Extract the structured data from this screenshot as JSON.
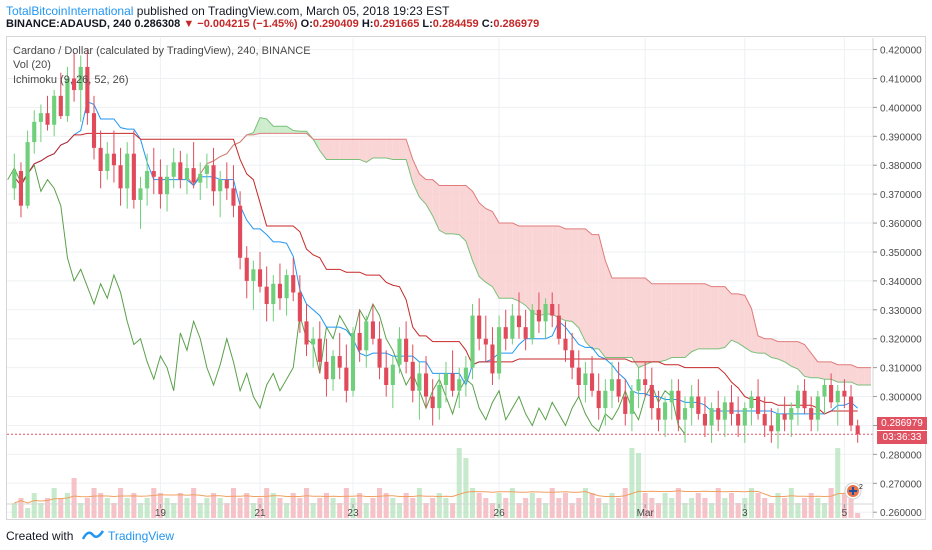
{
  "header": {
    "author": "TotalBitcoinInternational",
    "published": "published on TradingView.com, March 05, 2018 19:23 EST",
    "symbol": "BINANCE:ADAUSD, 240",
    "last": "0.286308",
    "change": "−0.004215 (−1.45%)",
    "o_label": "O:",
    "o_val": "0.290409",
    "h_label": "H:",
    "h_val": "0.291665",
    "l_label": "L:",
    "l_val": "0.284459",
    "c_label": "C:",
    "c_val": "0.286979"
  },
  "legend": {
    "title": "Cardano / Dollar (calculated by TradingView), 240, BINANCE",
    "vol": "Vol (20)",
    "ichimoku": "Ichimoku (9, 26, 52, 26)"
  },
  "price_tag": {
    "price": "0.286979",
    "countdown": "03:36:33"
  },
  "footer": {
    "created": "Created with",
    "brand": "TradingView"
  },
  "colors": {
    "up": "#6fcf7a",
    "down": "#e04a5a",
    "tenkan": "#2196f3",
    "kijun": "#c62828",
    "chikou": "#5aa04a",
    "cloud_up": "#c8ebc8",
    "cloud_down": "#f9d0d0"
  },
  "chart_data": {
    "type": "candlestick",
    "ylim": [
      0.258,
      0.424
    ],
    "y_ticks": [
      "0.420000",
      "0.410000",
      "0.400000",
      "0.390000",
      "0.380000",
      "0.370000",
      "0.360000",
      "0.350000",
      "0.340000",
      "0.330000",
      "0.320000",
      "0.310000",
      "0.300000",
      "0.290000",
      "0.280000",
      "0.270000",
      "0.260000"
    ],
    "x_ticks": [
      {
        "label": "19",
        "bar": 22
      },
      {
        "label": "21",
        "bar": 37
      },
      {
        "label": "23",
        "bar": 51
      },
      {
        "label": "26",
        "bar": 73
      },
      {
        "label": "Mar",
        "bar": 95
      },
      {
        "label": "3",
        "bar": 110
      },
      {
        "label": "5",
        "bar": 125
      }
    ],
    "candles": [
      [
        0.372,
        0.384,
        0.368,
        0.378
      ],
      [
        0.378,
        0.381,
        0.362,
        0.366
      ],
      [
        0.366,
        0.392,
        0.365,
        0.388
      ],
      [
        0.388,
        0.399,
        0.384,
        0.395
      ],
      [
        0.395,
        0.401,
        0.388,
        0.398
      ],
      [
        0.398,
        0.404,
        0.392,
        0.394
      ],
      [
        0.394,
        0.406,
        0.39,
        0.404
      ],
      [
        0.404,
        0.412,
        0.396,
        0.397
      ],
      [
        0.397,
        0.414,
        0.395,
        0.41
      ],
      [
        0.41,
        0.419,
        0.402,
        0.406
      ],
      [
        0.406,
        0.418,
        0.395,
        0.414
      ],
      [
        0.414,
        0.42,
        0.394,
        0.398
      ],
      [
        0.398,
        0.404,
        0.382,
        0.386
      ],
      [
        0.386,
        0.392,
        0.372,
        0.378
      ],
      [
        0.378,
        0.388,
        0.375,
        0.384
      ],
      [
        0.384,
        0.392,
        0.374,
        0.38
      ],
      [
        0.38,
        0.386,
        0.366,
        0.372
      ],
      [
        0.372,
        0.388,
        0.365,
        0.384
      ],
      [
        0.384,
        0.392,
        0.365,
        0.368
      ],
      [
        0.368,
        0.376,
        0.358,
        0.372
      ],
      [
        0.372,
        0.384,
        0.366,
        0.378
      ],
      [
        0.378,
        0.386,
        0.37,
        0.376
      ],
      [
        0.376,
        0.382,
        0.365,
        0.37
      ],
      [
        0.37,
        0.38,
        0.364,
        0.376
      ],
      [
        0.376,
        0.386,
        0.372,
        0.381
      ],
      [
        0.381,
        0.385,
        0.372,
        0.375
      ],
      [
        0.375,
        0.384,
        0.37,
        0.379
      ],
      [
        0.379,
        0.388,
        0.372,
        0.374
      ],
      [
        0.374,
        0.381,
        0.368,
        0.377
      ],
      [
        0.377,
        0.384,
        0.372,
        0.38
      ],
      [
        0.38,
        0.386,
        0.366,
        0.371
      ],
      [
        0.371,
        0.378,
        0.362,
        0.375
      ],
      [
        0.375,
        0.381,
        0.368,
        0.372
      ],
      [
        0.372,
        0.38,
        0.362,
        0.366
      ],
      [
        0.366,
        0.371,
        0.344,
        0.348
      ],
      [
        0.348,
        0.352,
        0.334,
        0.34
      ],
      [
        0.34,
        0.347,
        0.33,
        0.344
      ],
      [
        0.344,
        0.35,
        0.336,
        0.338
      ],
      [
        0.338,
        0.345,
        0.326,
        0.332
      ],
      [
        0.332,
        0.342,
        0.326,
        0.339
      ],
      [
        0.339,
        0.346,
        0.33,
        0.334
      ],
      [
        0.334,
        0.344,
        0.328,
        0.342
      ],
      [
        0.342,
        0.348,
        0.333,
        0.336
      ],
      [
        0.336,
        0.342,
        0.322,
        0.326
      ],
      [
        0.326,
        0.332,
        0.314,
        0.318
      ],
      [
        0.318,
        0.324,
        0.31,
        0.32
      ],
      [
        0.32,
        0.326,
        0.308,
        0.312
      ],
      [
        0.312,
        0.32,
        0.3,
        0.306
      ],
      [
        0.306,
        0.316,
        0.302,
        0.314
      ],
      [
        0.314,
        0.322,
        0.306,
        0.31
      ],
      [
        0.31,
        0.318,
        0.298,
        0.302
      ],
      [
        0.302,
        0.324,
        0.3,
        0.322
      ],
      [
        0.322,
        0.33,
        0.312,
        0.316
      ],
      [
        0.316,
        0.328,
        0.31,
        0.326
      ],
      [
        0.326,
        0.332,
        0.318,
        0.32
      ],
      [
        0.32,
        0.326,
        0.306,
        0.31
      ],
      [
        0.31,
        0.316,
        0.3,
        0.304
      ],
      [
        0.304,
        0.314,
        0.296,
        0.311
      ],
      [
        0.311,
        0.324,
        0.308,
        0.32
      ],
      [
        0.32,
        0.326,
        0.308,
        0.312
      ],
      [
        0.312,
        0.318,
        0.298,
        0.302
      ],
      [
        0.302,
        0.312,
        0.292,
        0.308
      ],
      [
        0.308,
        0.314,
        0.296,
        0.3
      ],
      [
        0.3,
        0.306,
        0.29,
        0.296
      ],
      [
        0.296,
        0.308,
        0.292,
        0.304
      ],
      [
        0.304,
        0.312,
        0.298,
        0.308
      ],
      [
        0.308,
        0.316,
        0.3,
        0.302
      ],
      [
        0.302,
        0.31,
        0.296,
        0.306
      ],
      [
        0.306,
        0.314,
        0.3,
        0.31
      ],
      [
        0.31,
        0.332,
        0.306,
        0.328
      ],
      [
        0.328,
        0.334,
        0.316,
        0.32
      ],
      [
        0.32,
        0.328,
        0.312,
        0.318
      ],
      [
        0.318,
        0.324,
        0.304,
        0.308
      ],
      [
        0.308,
        0.328,
        0.306,
        0.324
      ],
      [
        0.324,
        0.33,
        0.316,
        0.32
      ],
      [
        0.32,
        0.332,
        0.318,
        0.328
      ],
      [
        0.328,
        0.336,
        0.32,
        0.324
      ],
      [
        0.324,
        0.33,
        0.316,
        0.32
      ],
      [
        0.32,
        0.332,
        0.318,
        0.33
      ],
      [
        0.33,
        0.336,
        0.322,
        0.326
      ],
      [
        0.326,
        0.334,
        0.32,
        0.332
      ],
      [
        0.332,
        0.336,
        0.324,
        0.328
      ],
      [
        0.328,
        0.332,
        0.318,
        0.32
      ],
      [
        0.32,
        0.326,
        0.312,
        0.316
      ],
      [
        0.316,
        0.322,
        0.306,
        0.31
      ],
      [
        0.31,
        0.316,
        0.3,
        0.304
      ],
      [
        0.304,
        0.312,
        0.298,
        0.308
      ],
      [
        0.308,
        0.314,
        0.3,
        0.302
      ],
      [
        0.302,
        0.308,
        0.292,
        0.296
      ],
      [
        0.296,
        0.306,
        0.29,
        0.302
      ],
      [
        0.302,
        0.312,
        0.296,
        0.306
      ],
      [
        0.306,
        0.312,
        0.298,
        0.3
      ],
      [
        0.3,
        0.306,
        0.29,
        0.294
      ],
      [
        0.294,
        0.304,
        0.288,
        0.302
      ],
      [
        0.302,
        0.31,
        0.296,
        0.306
      ],
      [
        0.306,
        0.312,
        0.3,
        0.304
      ],
      [
        0.304,
        0.31,
        0.292,
        0.296
      ],
      [
        0.296,
        0.302,
        0.288,
        0.292
      ],
      [
        0.292,
        0.3,
        0.286,
        0.298
      ],
      [
        0.298,
        0.306,
        0.292,
        0.302
      ],
      [
        0.302,
        0.306,
        0.288,
        0.292
      ],
      [
        0.292,
        0.3,
        0.284,
        0.296
      ],
      [
        0.296,
        0.304,
        0.29,
        0.3
      ],
      [
        0.3,
        0.306,
        0.292,
        0.294
      ],
      [
        0.294,
        0.3,
        0.286,
        0.29
      ],
      [
        0.29,
        0.298,
        0.284,
        0.296
      ],
      [
        0.296,
        0.302,
        0.288,
        0.292
      ],
      [
        0.292,
        0.3,
        0.286,
        0.298
      ],
      [
        0.298,
        0.304,
        0.29,
        0.294
      ],
      [
        0.294,
        0.3,
        0.286,
        0.29
      ],
      [
        0.29,
        0.298,
        0.284,
        0.296
      ],
      [
        0.296,
        0.302,
        0.29,
        0.3
      ],
      [
        0.3,
        0.306,
        0.292,
        0.294
      ],
      [
        0.294,
        0.3,
        0.286,
        0.29
      ],
      [
        0.29,
        0.296,
        0.284,
        0.288
      ],
      [
        0.288,
        0.296,
        0.282,
        0.294
      ],
      [
        0.294,
        0.3,
        0.288,
        0.292
      ],
      [
        0.292,
        0.298,
        0.286,
        0.296
      ],
      [
        0.296,
        0.304,
        0.29,
        0.302
      ],
      [
        0.302,
        0.306,
        0.294,
        0.296
      ],
      [
        0.296,
        0.3,
        0.288,
        0.292
      ],
      [
        0.292,
        0.302,
        0.288,
        0.3
      ],
      [
        0.3,
        0.306,
        0.294,
        0.304
      ],
      [
        0.304,
        0.308,
        0.296,
        0.298
      ],
      [
        0.298,
        0.304,
        0.29,
        0.302
      ],
      [
        0.302,
        0.306,
        0.296,
        0.3
      ],
      [
        0.3,
        0.304,
        0.288,
        0.29
      ],
      [
        0.29,
        0.292,
        0.284,
        0.287
      ]
    ],
    "volumes": [
      3,
      4,
      2,
      5,
      3,
      4,
      6,
      4,
      5,
      8,
      3,
      4,
      6,
      5,
      4,
      3,
      6,
      4,
      5,
      3,
      4,
      6,
      5,
      4,
      3,
      5,
      4,
      6,
      3,
      4,
      5,
      4,
      3,
      6,
      4,
      5,
      3,
      4,
      6,
      5,
      4,
      3,
      5,
      4,
      6,
      3,
      4,
      5,
      4,
      3,
      6,
      4,
      5,
      3,
      4,
      6,
      5,
      4,
      3,
      5,
      4,
      6,
      3,
      4,
      5,
      4,
      3,
      14,
      12,
      6,
      5,
      4,
      3,
      5,
      4,
      6,
      3,
      4,
      5,
      4,
      3,
      6,
      4,
      5,
      3,
      4,
      6,
      5,
      4,
      3,
      5,
      4,
      6,
      14,
      13,
      5,
      4,
      3,
      5,
      4,
      6,
      3,
      4,
      5,
      4,
      3,
      6,
      4,
      5,
      3,
      4,
      6,
      5,
      4,
      3,
      5,
      4,
      6,
      3,
      4,
      5,
      4,
      3,
      6,
      14,
      5,
      4,
      1
    ]
  }
}
